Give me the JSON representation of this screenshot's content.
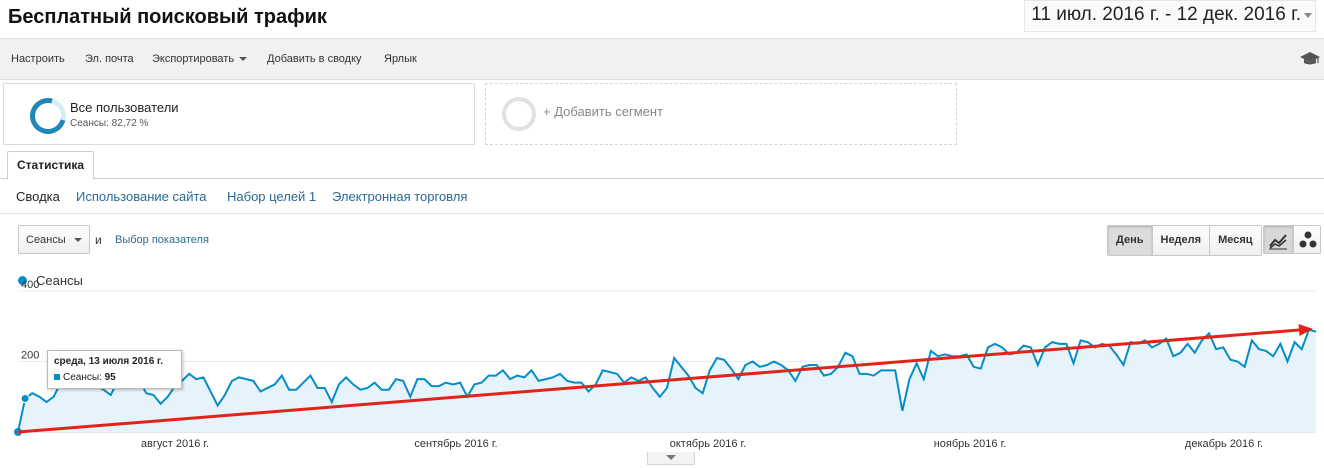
{
  "header": {
    "title": "Бесплатный поисковый трафик",
    "date_range": "11 июл. 2016 г. - 12 дек. 2016 г."
  },
  "toolbar": {
    "items": [
      "Настроить",
      "Эл. почта",
      "Экспортировать",
      "Добавить в сводку",
      "Ярлык"
    ],
    "academy_icon": "graduation-cap-icon"
  },
  "segments": {
    "active": {
      "title": "Все пользователи",
      "subtitle": "Сеансы: 82,72 %",
      "share": 0.8272
    },
    "add_label": "+ Добавить сегмент"
  },
  "tabs": {
    "stat": "Статистика"
  },
  "subnav": [
    "Сводка",
    "Использование сайта",
    "Набор целей 1",
    "Электронная торговля"
  ],
  "controls": {
    "metric": "Сеансы",
    "and": "и",
    "choose_metric": "Выбор показателя",
    "periods": [
      "День",
      "Неделя",
      "Месяц"
    ],
    "active_period": "День",
    "view_icons": [
      "line-chart-icon",
      "motion-chart-icon"
    ]
  },
  "legend": {
    "label": "Сеансы"
  },
  "tooltip": {
    "date": "среда, 13 июля 2016 г.",
    "metric": "Сеансы:",
    "value": "95"
  },
  "colors": {
    "series": "#058dc7",
    "trend": "#e2231a",
    "link": "#2b6a94",
    "fill": "#e6f3fa"
  },
  "chart_data": {
    "type": "area",
    "series": [
      {
        "name": "Сеансы",
        "values": [
          0,
          95,
          110,
          100,
          85,
          100,
          140,
          165,
          160,
          150,
          155,
          130,
          120,
          105,
          145,
          165,
          130,
          145,
          110,
          105,
          80,
          100,
          130,
          145,
          165,
          150,
          155,
          115,
          75,
          105,
          145,
          155,
          150,
          145,
          115,
          125,
          135,
          160,
          120,
          120,
          140,
          160,
          125,
          125,
          85,
          135,
          155,
          135,
          120,
          125,
          140,
          120,
          120,
          150,
          145,
          100,
          150,
          150,
          130,
          130,
          140,
          135,
          140,
          100,
          135,
          140,
          160,
          160,
          175,
          150,
          160,
          155,
          175,
          145,
          150,
          155,
          165,
          145,
          140,
          140,
          115,
          135,
          175,
          170,
          165,
          140,
          155,
          145,
          155,
          125,
          100,
          125,
          210,
          185,
          160,
          125,
          110,
          175,
          210,
          205,
          180,
          150,
          190,
          200,
          185,
          190,
          200,
          190,
          175,
          145,
          185,
          190,
          190,
          160,
          165,
          185,
          225,
          215,
          165,
          165,
          160,
          175,
          175,
          175,
          60,
          150,
          195,
          150,
          230,
          215,
          220,
          215,
          215,
          220,
          185,
          180,
          240,
          250,
          240,
          220,
          225,
          245,
          240,
          190,
          240,
          255,
          250,
          250,
          195,
          260,
          255,
          240,
          250,
          245,
          220,
          190,
          255,
          250,
          260,
          240,
          250,
          265,
          215,
          225,
          250,
          225,
          260,
          280,
          235,
          240,
          205,
          200,
          185,
          260,
          235,
          230,
          215,
          250,
          200,
          255,
          235,
          290,
          285
        ]
      }
    ],
    "x_start": "2016-07-11",
    "x_end": "2016-12-12",
    "x_tick_labels": [
      "август 2016 г.",
      "сентябрь 2016 г.",
      "октябрь 2016 г.",
      "ноябрь 2016 г.",
      "декабрь 2016 г."
    ],
    "y_tick_labels": [
      "400",
      "200"
    ],
    "ylim": [
      0,
      400
    ],
    "highlight": {
      "x": "2016-07-13",
      "y": 95
    },
    "trendline": {
      "from": 0,
      "to": 290
    }
  }
}
